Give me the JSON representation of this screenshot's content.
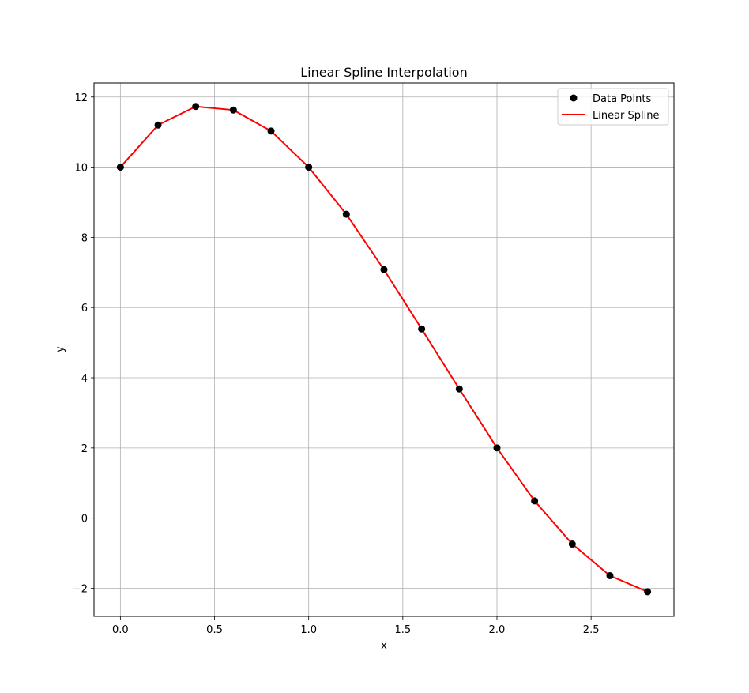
{
  "chart_data": {
    "type": "line",
    "title": "Linear Spline Interpolation",
    "xlabel": "x",
    "ylabel": "y",
    "xlim": [
      -0.14,
      2.94
    ],
    "ylim": [
      -2.8,
      12.4
    ],
    "xticks": [
      0.0,
      0.5,
      1.0,
      1.5,
      2.0,
      2.5
    ],
    "xtick_labels": [
      "0.0",
      "0.5",
      "1.0",
      "1.5",
      "2.0",
      "2.5"
    ],
    "yticks": [
      -2,
      0,
      2,
      4,
      6,
      8,
      10,
      12
    ],
    "ytick_labels": [
      "−2",
      "0",
      "2",
      "4",
      "6",
      "8",
      "10",
      "12"
    ],
    "grid": true,
    "legend_position": "top-right",
    "series": [
      {
        "name": "Data Points",
        "kind": "scatter",
        "color": "#000000",
        "x": [
          0.0,
          0.2,
          0.4,
          0.6,
          0.8,
          1.0,
          1.2,
          1.4,
          1.6,
          1.8,
          2.0,
          2.2,
          2.4,
          2.6,
          2.8
        ],
        "y": [
          10.0,
          11.2,
          11.73,
          11.63,
          11.03,
          10.0,
          8.66,
          7.08,
          5.39,
          3.68,
          2.0,
          0.49,
          -0.74,
          -1.64,
          -2.1
        ]
      },
      {
        "name": "Linear Spline",
        "kind": "line",
        "color": "#ff0000",
        "x": [
          0.0,
          0.2,
          0.4,
          0.6,
          0.8,
          1.0,
          1.2,
          1.4,
          1.6,
          1.8,
          2.0,
          2.2,
          2.4,
          2.6,
          2.8
        ],
        "y": [
          10.0,
          11.2,
          11.73,
          11.63,
          11.03,
          10.0,
          8.66,
          7.08,
          5.39,
          3.68,
          2.0,
          0.49,
          -0.74,
          -1.64,
          -2.1
        ]
      }
    ]
  }
}
